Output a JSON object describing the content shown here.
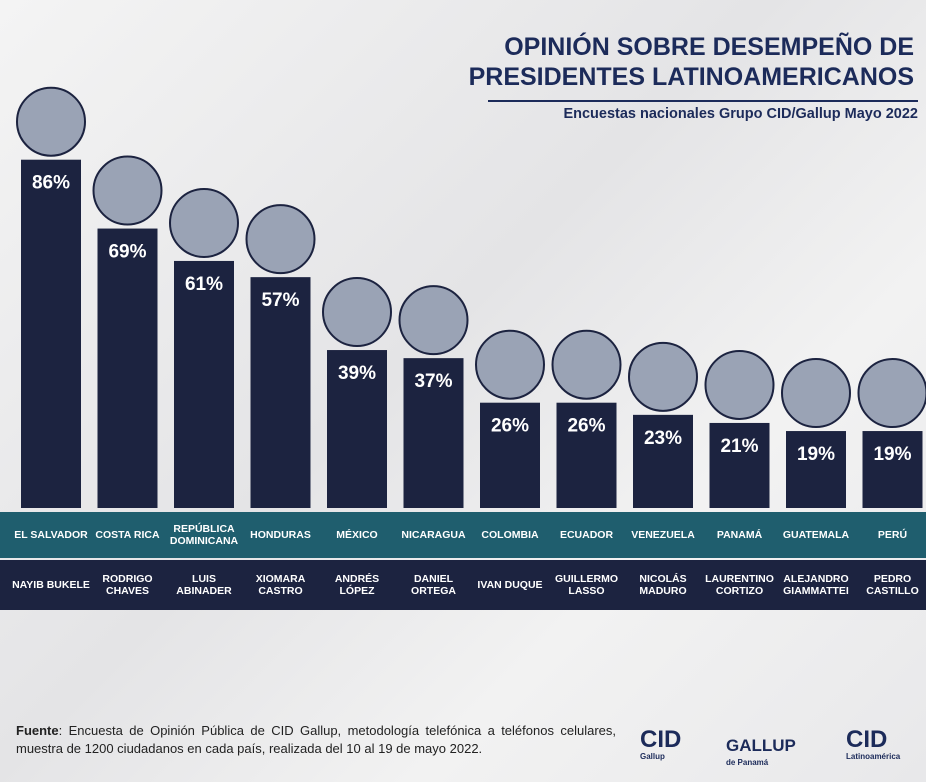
{
  "chart_data": {
    "type": "bar",
    "title": [
      "OPINIÓN SOBRE DESEMPEÑO DE",
      "PRESIDENTES LATINOAMERICANOS"
    ],
    "subtitle": "Encuestas nacionales Grupo CID/Gallup Mayo 2022",
    "categories": [
      "EL SALVADOR",
      "COSTA RICA",
      "REPÚBLICA DOMINICANA",
      "HONDURAS",
      "MÉXICO",
      "NICARAGUA",
      "COLOMBIA",
      "ECUADOR",
      "VENEZUELA",
      "PANAMÁ",
      "GUATEMALA",
      "PERÚ"
    ],
    "presidents": [
      "NAYIB BUKELE",
      "RODRIGO CHAVES",
      "LUIS ABINADER",
      "XIOMARA CASTRO",
      "ANDRÉS LÓPEZ",
      "DANIEL ORTEGA",
      "IVAN DUQUE",
      "GUILLERMO LASSO",
      "NICOLÁS MADURO",
      "LAURENTINO CORTIZO",
      "ALEJANDRO GIAMMATTEI",
      "PEDRO CASTILLO"
    ],
    "values": [
      86,
      69,
      61,
      57,
      39,
      37,
      26,
      26,
      23,
      21,
      19,
      19
    ],
    "value_labels": [
      "86%",
      "69%",
      "61%",
      "57%",
      "39%",
      "37%",
      "26%",
      "26%",
      "23%",
      "21%",
      "19%",
      "19%"
    ],
    "color": "#1c2340"
  },
  "source": {
    "label": "Fuente",
    "text": ": Encuesta de Opinión Pública de CID Gallup, metodología telefónica a teléfonos celulares, muestra de 1200 ciudadanos en cada país, realizada del 10 al 19 de mayo 2022."
  },
  "logos": [
    {
      "name": "CID",
      "sub": "Gallup"
    },
    {
      "name": "GALLUP",
      "sub": "de Panamá"
    },
    {
      "name": "CID",
      "sub": "Latinoamérica"
    }
  ]
}
